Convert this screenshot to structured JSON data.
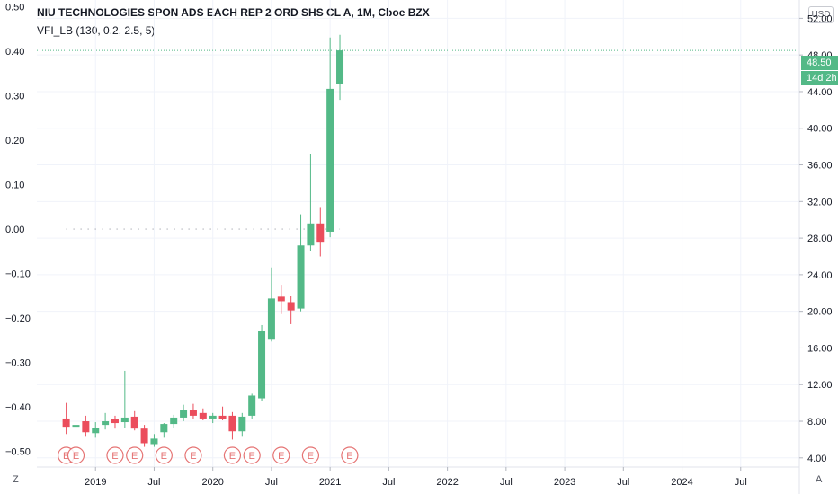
{
  "header": {
    "title": "NIU TECHNOLOGIES SPON ADS EACH REP 2 ORD SHS CL A, 1M, Cboe BZX",
    "indicator": "VFI_LB (130, 0.2, 2.5, 5)",
    "currency_button": "USD",
    "last_price_label": "48.50",
    "countdown_label": "14d 2h"
  },
  "footer": {
    "zoom_label": "Z",
    "autoscale_label": "A"
  },
  "colors": {
    "up": "#53b987",
    "down": "#eb4d5c",
    "earnings": "#e57373",
    "grid": "#f0f3fa",
    "axis_text": "#131722"
  },
  "chart_data": {
    "type": "candlestick",
    "timeframe": "1M",
    "x_axis": {
      "ticks": [
        {
          "date": "2019-01",
          "label": "2019"
        },
        {
          "date": "2019-07",
          "label": "Jul"
        },
        {
          "date": "2020-01",
          "label": "2020"
        },
        {
          "date": "2020-07",
          "label": "Jul"
        },
        {
          "date": "2021-01",
          "label": "2021"
        },
        {
          "date": "2021-07",
          "label": "Jul"
        },
        {
          "date": "2022-01",
          "label": "2022"
        },
        {
          "date": "2022-07",
          "label": "Jul"
        },
        {
          "date": "2023-01",
          "label": "2023"
        },
        {
          "date": "2023-07",
          "label": "Jul"
        },
        {
          "date": "2024-01",
          "label": "2024"
        },
        {
          "date": "2024-07",
          "label": "Jul"
        }
      ],
      "range": [
        "2018-07",
        "2025-01"
      ]
    },
    "price_axis": {
      "position": "right",
      "range": [
        3.0,
        54.0
      ],
      "ticks": [
        4,
        8,
        12,
        16,
        20,
        24,
        28,
        32,
        36,
        40,
        44,
        48,
        52
      ],
      "tick_labels": [
        "4.00",
        "8.00",
        "12.00",
        "16.00",
        "20.00",
        "24.00",
        "28.00",
        "32.00",
        "36.00",
        "40.00",
        "44.00",
        "48.00",
        "52.00"
      ],
      "last_price": 48.5
    },
    "indicator_axis": {
      "position": "left",
      "range": [
        -0.535,
        0.515
      ],
      "ticks": [
        -0.5,
        -0.4,
        -0.3,
        -0.2,
        -0.1,
        0.0,
        0.1,
        0.2,
        0.3,
        0.4,
        0.5
      ],
      "tick_labels": [
        "−0.50",
        "−0.40",
        "−0.30",
        "−0.20",
        "−0.10",
        "0.00",
        "0.10",
        "0.20",
        "0.30",
        "0.40",
        "0.50"
      ],
      "zero_line_dotted": true
    },
    "candles": [
      {
        "date": "2018-10",
        "open": 8.3,
        "high": 10.0,
        "low": 6.6,
        "close": 7.4
      },
      {
        "date": "2018-11",
        "open": 7.4,
        "high": 8.7,
        "low": 6.9,
        "close": 7.6
      },
      {
        "date": "2018-12",
        "open": 8.0,
        "high": 8.6,
        "low": 6.4,
        "close": 6.8
      },
      {
        "date": "2019-01",
        "open": 6.7,
        "high": 7.9,
        "low": 6.2,
        "close": 7.3
      },
      {
        "date": "2019-02",
        "open": 7.6,
        "high": 8.9,
        "low": 7.1,
        "close": 8.0
      },
      {
        "date": "2019-03",
        "open": 8.2,
        "high": 8.6,
        "low": 7.2,
        "close": 7.8
      },
      {
        "date": "2019-04",
        "open": 7.9,
        "high": 13.5,
        "low": 7.3,
        "close": 8.4
      },
      {
        "date": "2019-05",
        "open": 8.5,
        "high": 9.1,
        "low": 7.0,
        "close": 7.2
      },
      {
        "date": "2019-06",
        "open": 7.2,
        "high": 7.6,
        "low": 5.2,
        "close": 5.6
      },
      {
        "date": "2019-07",
        "open": 5.5,
        "high": 6.6,
        "low": 5.2,
        "close": 6.1
      },
      {
        "date": "2019-08",
        "open": 6.8,
        "high": 7.8,
        "low": 6.2,
        "close": 7.7
      },
      {
        "date": "2019-09",
        "open": 7.7,
        "high": 8.7,
        "low": 7.3,
        "close": 8.4
      },
      {
        "date": "2019-10",
        "open": 8.4,
        "high": 9.8,
        "low": 8.0,
        "close": 9.2
      },
      {
        "date": "2019-11",
        "open": 9.2,
        "high": 9.9,
        "low": 8.3,
        "close": 8.6
      },
      {
        "date": "2019-12",
        "open": 8.9,
        "high": 9.4,
        "low": 8.1,
        "close": 8.3
      },
      {
        "date": "2020-01",
        "open": 8.3,
        "high": 8.9,
        "low": 7.8,
        "close": 8.6
      },
      {
        "date": "2020-02",
        "open": 8.6,
        "high": 9.6,
        "low": 8.1,
        "close": 8.2
      },
      {
        "date": "2020-03",
        "open": 8.6,
        "high": 9.0,
        "low": 6.0,
        "close": 6.9
      },
      {
        "date": "2020-04",
        "open": 6.9,
        "high": 8.9,
        "low": 6.4,
        "close": 8.5
      },
      {
        "date": "2020-05",
        "open": 8.6,
        "high": 11.0,
        "low": 8.3,
        "close": 10.8
      },
      {
        "date": "2020-06",
        "open": 10.5,
        "high": 18.5,
        "low": 10.2,
        "close": 17.9
      },
      {
        "date": "2020-07",
        "open": 17.0,
        "high": 24.8,
        "low": 16.7,
        "close": 21.4
      },
      {
        "date": "2020-08",
        "open": 21.6,
        "high": 22.9,
        "low": 19.7,
        "close": 21.1
      },
      {
        "date": "2020-09",
        "open": 21.0,
        "high": 21.7,
        "low": 18.6,
        "close": 20.1
      },
      {
        "date": "2020-10",
        "open": 20.3,
        "high": 30.6,
        "low": 20.0,
        "close": 27.2
      },
      {
        "date": "2020-11",
        "open": 27.2,
        "high": 37.2,
        "low": 26.6,
        "close": 29.6
      },
      {
        "date": "2020-12",
        "open": 29.6,
        "high": 31.3,
        "low": 26.0,
        "close": 27.6
      },
      {
        "date": "2021-01",
        "open": 28.7,
        "high": 49.9,
        "low": 28.1,
        "close": 44.3
      },
      {
        "date": "2021-02",
        "open": 44.8,
        "high": 50.2,
        "low": 43.1,
        "close": 48.5
      }
    ],
    "earnings_markers": {
      "label": "E",
      "dates": [
        "2018-10",
        "2018-11",
        "2019-03",
        "2019-05",
        "2019-08",
        "2019-11",
        "2020-03",
        "2020-05",
        "2020-08",
        "2020-11",
        "2021-03"
      ]
    }
  }
}
